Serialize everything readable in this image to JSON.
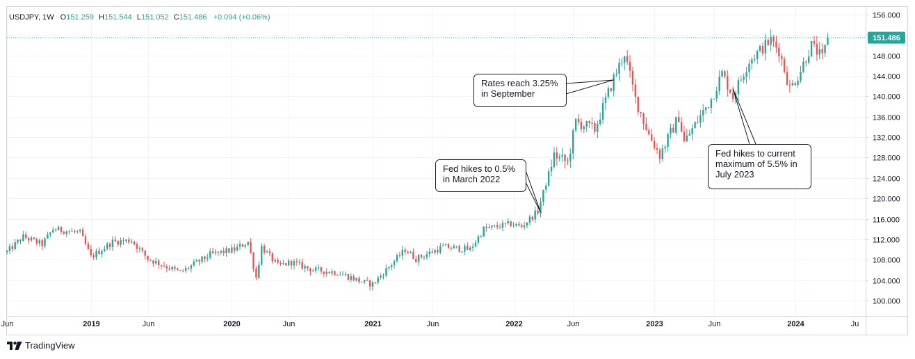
{
  "header": {
    "symbol": "USDJPY, 1W",
    "open_label": "O",
    "open": "151.259",
    "high_label": "H",
    "high": "151.544",
    "low_label": "L",
    "low": "151.052",
    "close_label": "C",
    "close": "151.486",
    "change": "+0.094 (+0.06%)"
  },
  "branding": {
    "logo_text": "TradingView",
    "logo_icon": "tradingview-logo-icon"
  },
  "colors": {
    "up": "#26a69a",
    "down": "#ef5350",
    "grid": "#f0f3fa",
    "axis_text": "#131722",
    "price_tag": "#26a69a",
    "border": "#d1d4dc"
  },
  "chart_data": {
    "type": "candlestick",
    "ylim": [
      97.0,
      157.5
    ],
    "yticks": [
      "156.000",
      "152.000",
      "148.000",
      "144.000",
      "140.000",
      "136.000",
      "132.000",
      "128.000",
      "124.000",
      "120.000",
      "116.000",
      "112.000",
      "108.000",
      "104.000",
      "100.000"
    ],
    "x_range": [
      "2018-06-04",
      "2024-07-01"
    ],
    "xticks": [
      {
        "label": "Jun",
        "date": "2018-06-04"
      },
      {
        "label": "2019",
        "date": "2019-01-07"
      },
      {
        "label": "Jun",
        "date": "2019-06-03"
      },
      {
        "label": "2020",
        "date": "2020-01-06"
      },
      {
        "label": "Jun",
        "date": "2020-06-01"
      },
      {
        "label": "2021",
        "date": "2021-01-04"
      },
      {
        "label": "Jun",
        "date": "2021-06-07"
      },
      {
        "label": "2022",
        "date": "2022-01-03"
      },
      {
        "label": "Jun",
        "date": "2022-06-06"
      },
      {
        "label": "2023",
        "date": "2023-01-02"
      },
      {
        "label": "Jun",
        "date": "2023-06-05"
      },
      {
        "label": "2024",
        "date": "2024-01-01"
      },
      {
        "label": "Ju",
        "date": "2024-06-03"
      }
    ],
    "last_price": "151.486",
    "last_value": 151.486,
    "keypoints": [
      [
        "2018-06-04",
        109.5
      ],
      [
        "2018-07-16",
        112.5
      ],
      [
        "2018-09-03",
        111.0
      ],
      [
        "2018-10-01",
        114.0
      ],
      [
        "2018-12-10",
        113.3
      ],
      [
        "2019-01-07",
        108.5
      ],
      [
        "2019-03-04",
        111.5
      ],
      [
        "2019-04-22",
        111.8
      ],
      [
        "2019-06-03",
        108.2
      ],
      [
        "2019-08-26",
        105.5
      ],
      [
        "2019-11-11",
        109.0
      ],
      [
        "2020-01-13",
        110.0
      ],
      [
        "2020-02-17",
        111.5
      ],
      [
        "2020-03-09",
        104.5
      ],
      [
        "2020-03-23",
        110.5
      ],
      [
        "2020-05-04",
        106.8
      ],
      [
        "2020-06-08",
        107.5
      ],
      [
        "2020-08-03",
        106.0
      ],
      [
        "2020-10-05",
        105.5
      ],
      [
        "2020-12-14",
        103.5
      ],
      [
        "2021-01-04",
        103.2
      ],
      [
        "2021-03-29",
        110.0
      ],
      [
        "2021-04-26",
        108.2
      ],
      [
        "2021-07-05",
        110.5
      ],
      [
        "2021-09-13",
        110.0
      ],
      [
        "2021-10-18",
        114.0
      ],
      [
        "2021-12-27",
        115.0
      ],
      [
        "2022-01-24",
        114.5
      ],
      [
        "2022-03-07",
        117.5
      ],
      [
        "2022-04-18",
        128.5
      ],
      [
        "2022-05-23",
        127.0
      ],
      [
        "2022-06-13",
        135.0
      ],
      [
        "2022-08-01",
        133.5
      ],
      [
        "2022-09-19",
        143.5
      ],
      [
        "2022-10-17",
        148.5
      ],
      [
        "2022-11-14",
        139.5
      ],
      [
        "2022-12-19",
        132.5
      ],
      [
        "2023-01-16",
        128.5
      ],
      [
        "2023-03-06",
        136.0
      ],
      [
        "2023-03-20",
        131.0
      ],
      [
        "2023-05-29",
        139.5
      ],
      [
        "2023-06-26",
        144.5
      ],
      [
        "2023-07-24",
        140.0
      ],
      [
        "2023-09-04",
        147.0
      ],
      [
        "2023-10-30",
        151.0
      ],
      [
        "2023-11-20",
        149.0
      ],
      [
        "2023-12-18",
        141.5
      ],
      [
        "2024-01-08",
        144.0
      ],
      [
        "2024-02-12",
        150.0
      ],
      [
        "2024-03-11",
        147.5
      ],
      [
        "2024-03-25",
        151.3
      ]
    ],
    "annotations": [
      {
        "text": [
          "Fed hikes to 0.5%",
          "in March 2022"
        ],
        "target_date": "2022-03-14",
        "target_value": 117.3
      },
      {
        "text": [
          "Rates reach 3.25%",
          "in September"
        ],
        "target_date": "2022-09-19",
        "target_value": 143.2
      },
      {
        "text": [
          "Fed hikes to current",
          "maximum of 5.5% in",
          "July 2023"
        ],
        "target_date": "2023-07-24",
        "target_value": 141.5
      }
    ]
  }
}
